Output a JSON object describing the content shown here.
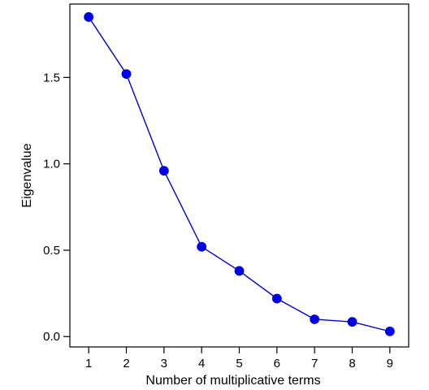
{
  "chart_data": {
    "type": "line",
    "xlabel": "Number of multiplicative terms",
    "ylabel": "Eigenvalue",
    "x": [
      1,
      2,
      3,
      4,
      5,
      6,
      7,
      8,
      9
    ],
    "series": [
      {
        "values": [
          1.85,
          1.52,
          0.96,
          0.52,
          0.38,
          0.22,
          0.1,
          0.085,
          0.03
        ]
      }
    ],
    "xlim": [
      0.5,
      9.5
    ],
    "ylim": [
      -0.06,
      1.925
    ],
    "xticks": [
      1,
      2,
      3,
      4,
      5,
      6,
      7,
      8,
      9
    ],
    "yticks": [
      0.0,
      0.5,
      1.0,
      1.5
    ],
    "ytick_labels": [
      "0.0",
      "0.5",
      "1.0",
      "1.5"
    ],
    "grid": false,
    "colors": {
      "line": "#0000cc",
      "marker": "#0000ee"
    }
  }
}
